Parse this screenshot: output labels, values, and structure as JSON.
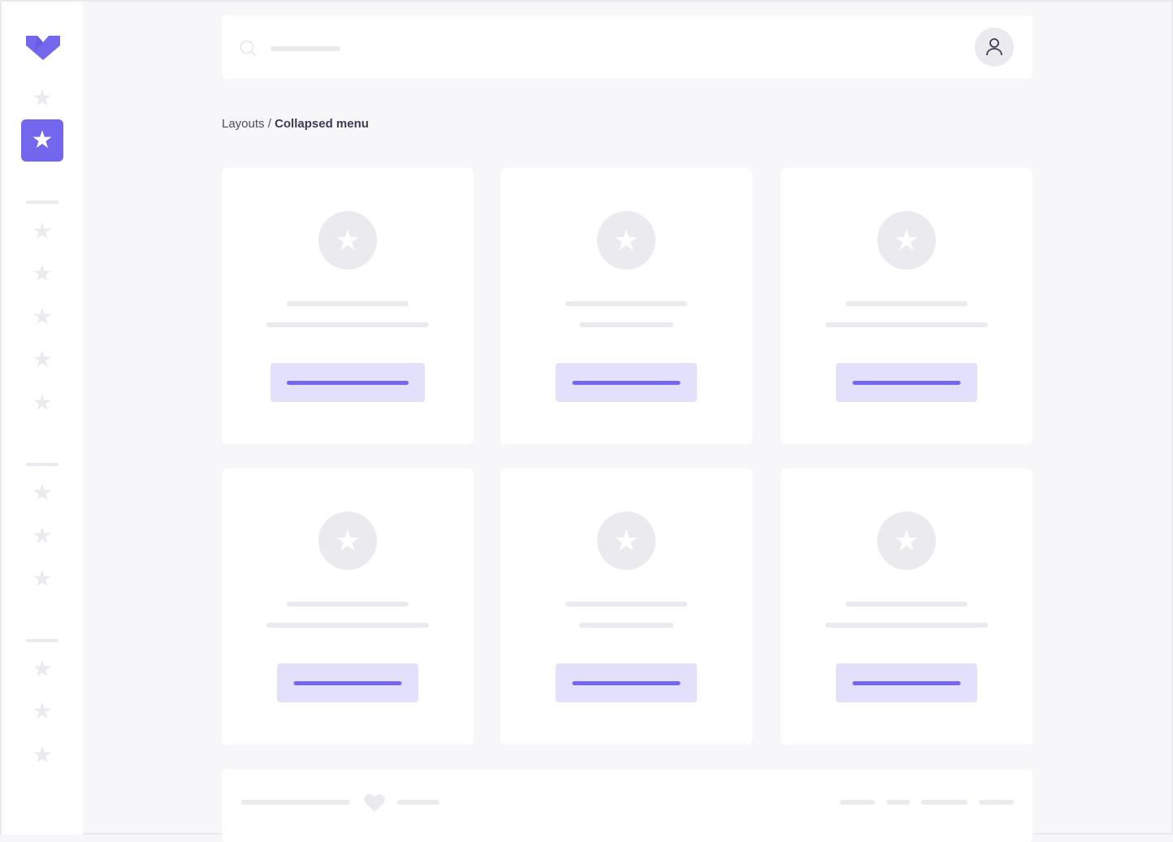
{
  "breadcrumb": {
    "parent": "Layouts",
    "separator": " / ",
    "current": "Collapsed menu"
  },
  "colors": {
    "accent": "#7367ee",
    "accent_light": "#e3e0fc",
    "skeleton": "#ebebef",
    "background": "#f7f7f9"
  },
  "sidebar": {
    "logo": "logo-icon",
    "active_index": 1,
    "icons": "star-icon"
  }
}
